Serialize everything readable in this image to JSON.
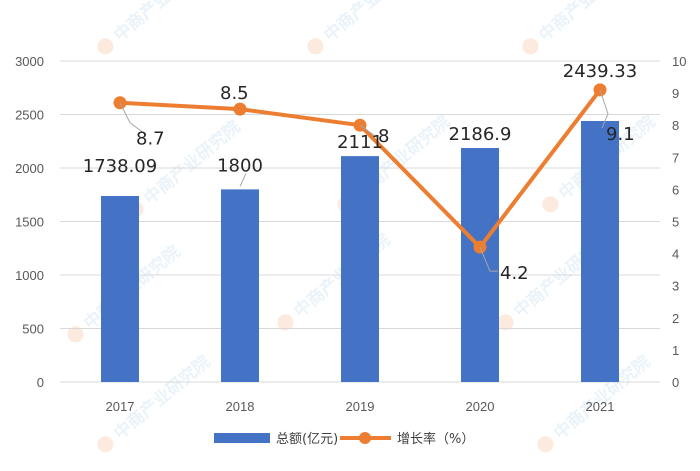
{
  "chart_data": {
    "type": "bar+line",
    "categories": [
      "2017",
      "2018",
      "2019",
      "2020",
      "2021"
    ],
    "series": [
      {
        "name": "总额(亿元)",
        "type": "bar",
        "axis": "left",
        "values": [
          1738.09,
          1800,
          2111,
          2186.9,
          2439.33
        ],
        "color": "#4472c4",
        "labels": [
          "1738.09",
          "1800",
          "2111",
          "2186.9",
          "2439.33"
        ]
      },
      {
        "name": "增长率（%）",
        "type": "line",
        "axis": "right",
        "values": [
          8.7,
          8.5,
          8,
          4.2,
          9.1
        ],
        "color": "#ed7d31",
        "labels": [
          "8.7",
          "8.5",
          "8",
          "4.2",
          "9.1"
        ]
      }
    ],
    "ylim_left": [
      0,
      3000
    ],
    "yticks_left": [
      "0",
      "500",
      "1000",
      "1500",
      "2000",
      "2500",
      "3000"
    ],
    "ylim_right": [
      0,
      10
    ],
    "yticks_right": [
      "0",
      "1",
      "2",
      "3",
      "4",
      "5",
      "6",
      "7",
      "8",
      "9",
      "10"
    ],
    "grid": true,
    "legend_position": "bottom"
  },
  "watermark": {
    "text": "中商产业研究院",
    "color": "#5b9bd5"
  }
}
